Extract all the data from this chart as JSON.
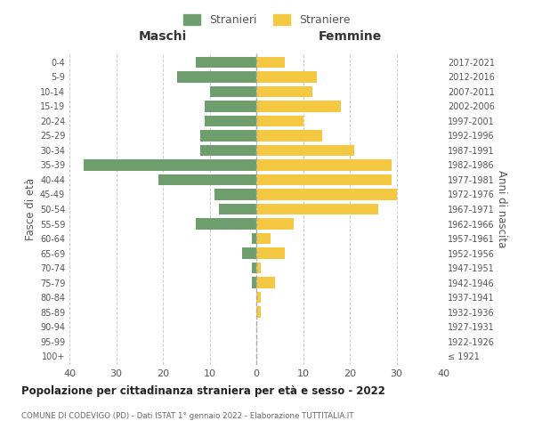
{
  "age_groups": [
    "100+",
    "95-99",
    "90-94",
    "85-89",
    "80-84",
    "75-79",
    "70-74",
    "65-69",
    "60-64",
    "55-59",
    "50-54",
    "45-49",
    "40-44",
    "35-39",
    "30-34",
    "25-29",
    "20-24",
    "15-19",
    "10-14",
    "5-9",
    "0-4"
  ],
  "birth_years": [
    "≤ 1921",
    "1922-1926",
    "1927-1931",
    "1932-1936",
    "1937-1941",
    "1942-1946",
    "1947-1951",
    "1952-1956",
    "1957-1961",
    "1962-1966",
    "1967-1971",
    "1972-1976",
    "1977-1981",
    "1982-1986",
    "1987-1991",
    "1992-1996",
    "1997-2001",
    "2002-2006",
    "2007-2011",
    "2012-2016",
    "2017-2021"
  ],
  "maschi": [
    0,
    0,
    0,
    0,
    0,
    1,
    1,
    3,
    1,
    13,
    8,
    9,
    21,
    37,
    12,
    12,
    11,
    11,
    10,
    17,
    13
  ],
  "femmine": [
    0,
    0,
    0,
    1,
    1,
    4,
    1,
    6,
    3,
    8,
    26,
    30,
    29,
    29,
    21,
    14,
    10,
    18,
    12,
    13,
    6
  ],
  "maschi_color": "#6e9e6e",
  "femmine_color": "#f5c842",
  "background_color": "#ffffff",
  "grid_color": "#cccccc",
  "title": "Popolazione per cittadinanza straniera per età e sesso - 2022",
  "subtitle": "COMUNE DI CODEVIGO (PD) - Dati ISTAT 1° gennaio 2022 - Elaborazione TUTTITALIA.IT",
  "ylabel_left": "Fasce di età",
  "ylabel_right": "Anni di nascita",
  "xlabel_left": "Maschi",
  "xlabel_right": "Femmine",
  "legend_maschi": "Stranieri",
  "legend_femmine": "Straniere",
  "xlim": 40,
  "bar_height": 0.75
}
